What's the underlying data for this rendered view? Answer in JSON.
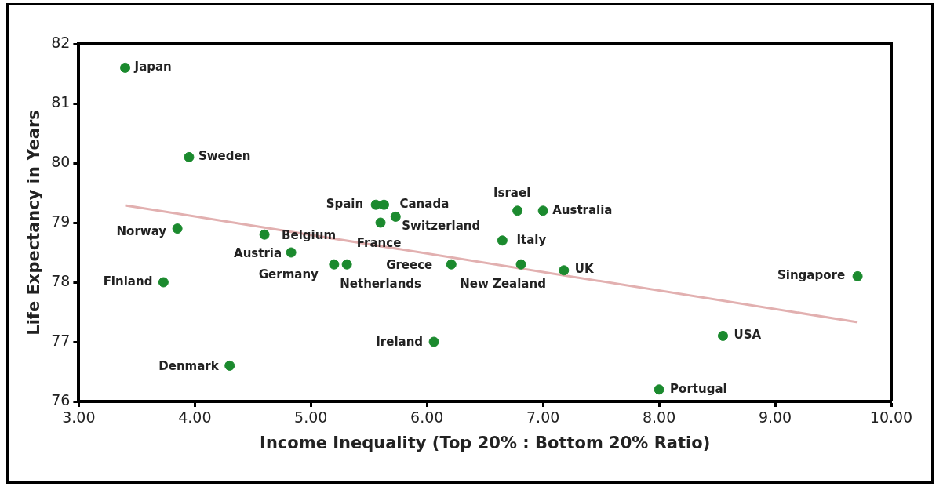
{
  "chart_data": {
    "type": "scatter",
    "xlabel": "Income Inequality (Top 20% : Bottom 20% Ratio)",
    "ylabel": "Life Expectancy in Years",
    "xlim": [
      3,
      10
    ],
    "xticks": [
      {
        "value": 3,
        "label": "3.00"
      },
      {
        "value": 4,
        "label": "4.00"
      },
      {
        "value": 5,
        "label": "5.00"
      },
      {
        "value": 6,
        "label": "6.00"
      },
      {
        "value": 7,
        "label": "7.00"
      },
      {
        "value": 8,
        "label": "8.00"
      },
      {
        "value": 9,
        "label": "9.00"
      },
      {
        "value": 10,
        "label": "10.00"
      }
    ],
    "ylim": [
      76,
      82
    ],
    "yticks": [
      76,
      77,
      78,
      79,
      80,
      81,
      82
    ],
    "grid": false,
    "legend": false,
    "marker": "circle",
    "series": [
      {
        "color": "#1b8a2e",
        "x": [
          3.4,
          3.95,
          3.85,
          3.73,
          4.3,
          4.6,
          4.83,
          5.2,
          5.31,
          5.56,
          5.63,
          5.73,
          5.6,
          6.21,
          6.06,
          6.78,
          7.0,
          6.65,
          6.81,
          7.18,
          9.71,
          8.55,
          8.0
        ],
        "values": [
          81.6,
          80.1,
          78.9,
          78.0,
          76.6,
          78.8,
          78.5,
          78.3,
          78.3,
          79.3,
          79.3,
          79.1,
          79.0,
          78.3,
          77.0,
          79.2,
          79.2,
          78.7,
          78.3,
          78.2,
          78.1,
          77.1,
          76.2
        ]
      },
      {
        "type": "line",
        "marker": "none",
        "color": "#e2b0b0",
        "x": [
          3.4,
          9.71
        ],
        "values": [
          79.29,
          77.33
        ]
      }
    ],
    "annotations": [
      {
        "text": "Japan",
        "x": 3.4,
        "y": 81.6
      },
      {
        "text": "Sweden",
        "x": 3.95,
        "y": 80.1
      },
      {
        "text": "Norway",
        "x": 3.85,
        "y": 78.9
      },
      {
        "text": "Finland",
        "x": 3.73,
        "y": 78.0
      },
      {
        "text": "Denmark",
        "x": 4.3,
        "y": 76.6
      },
      {
        "text": "Belgium",
        "x": 4.6,
        "y": 78.8
      },
      {
        "text": "Austria",
        "x": 4.83,
        "y": 78.5
      },
      {
        "text": "Germany",
        "x": 5.2,
        "y": 78.3
      },
      {
        "text": "Netherlands",
        "x": 5.31,
        "y": 78.3
      },
      {
        "text": "Spain",
        "x": 5.56,
        "y": 79.3
      },
      {
        "text": "Canada",
        "x": 5.63,
        "y": 79.3
      },
      {
        "text": "Switzerland",
        "x": 5.73,
        "y": 79.1
      },
      {
        "text": "France",
        "x": 5.6,
        "y": 79.0
      },
      {
        "text": "Greece",
        "x": 6.21,
        "y": 78.3
      },
      {
        "text": "Ireland",
        "x": 6.06,
        "y": 77.0
      },
      {
        "text": "Israel",
        "x": 6.78,
        "y": 79.2
      },
      {
        "text": "Australia",
        "x": 7.0,
        "y": 79.2
      },
      {
        "text": "Italy",
        "x": 6.65,
        "y": 78.7
      },
      {
        "text": "New Zealand",
        "x": 6.81,
        "y": 78.3
      },
      {
        "text": "UK",
        "x": 7.18,
        "y": 78.2
      },
      {
        "text": "Singapore",
        "x": 9.71,
        "y": 78.1
      },
      {
        "text": "USA",
        "x": 8.55,
        "y": 77.1
      },
      {
        "text": "Portugal",
        "x": 8.0,
        "y": 76.2
      }
    ]
  }
}
